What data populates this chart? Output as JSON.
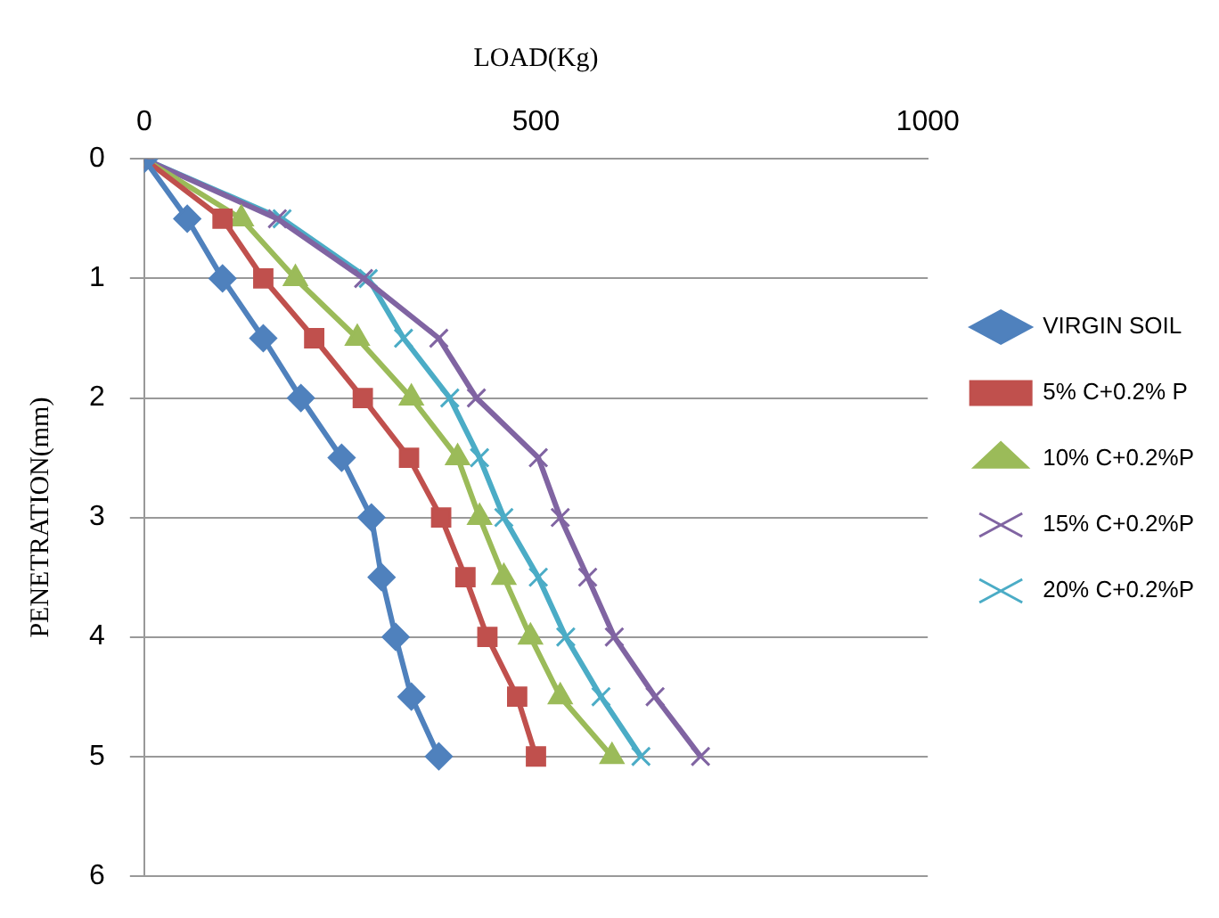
{
  "chart_data": {
    "type": "line",
    "xlabel": "LOAD(Kg)",
    "ylabel": "PENETRATION(mm)",
    "xlim": [
      0,
      1000
    ],
    "xticks": [
      0,
      500,
      1000
    ],
    "ylim": [
      6,
      0
    ],
    "yticks": [
      0,
      1,
      2,
      3,
      4,
      5,
      6
    ],
    "grid": "y",
    "legend": "right",
    "line_style": "solid",
    "series": [
      {
        "name": "VIRGIN SOIL",
        "color": "#4f81bd",
        "marker": "diamond",
        "x": [
          0,
          55,
          100,
          152,
          200,
          252,
          290,
          303,
          321,
          341,
          376
        ],
        "values": [
          0,
          0.5,
          1,
          1.5,
          2,
          2.5,
          3,
          3.5,
          4,
          4.5,
          5
        ]
      },
      {
        "name": "5% C+0.2% P",
        "color": "#c0504d",
        "marker": "square",
        "x": [
          0,
          100,
          152,
          217,
          279,
          338,
          379,
          410,
          438,
          476,
          500
        ],
        "values": [
          0,
          0.5,
          1,
          1.5,
          2,
          2.5,
          3,
          3.5,
          4,
          4.5,
          5
        ]
      },
      {
        "name": "10% C+0.2%P",
        "color": "#9bbb59",
        "marker": "triangle",
        "x": [
          0,
          124,
          193,
          272,
          341,
          400,
          428,
          459,
          493,
          531,
          597
        ],
        "values": [
          0,
          0.5,
          1,
          1.5,
          2,
          2.5,
          3,
          3.5,
          4,
          4.5,
          5
        ]
      },
      {
        "name": "15% C+0.2%P",
        "color": "#8064a2",
        "marker": "cross",
        "x": [
          0,
          170,
          280,
          376,
          424,
          503,
          531,
          566,
          600,
          652,
          710
        ],
        "values": [
          0,
          0.5,
          1,
          1.5,
          2,
          2.5,
          3,
          3.5,
          4,
          4.5,
          5
        ]
      },
      {
        "name": "20% C+0.2%P",
        "color": "#4bacc6",
        "marker": "cross",
        "x": [
          0,
          176,
          286,
          331,
          390,
          428,
          459,
          503,
          538,
          583,
          634
        ],
        "values": [
          0,
          0.5,
          1,
          1.5,
          2,
          2.5,
          3,
          3.5,
          4,
          4.5,
          5
        ]
      }
    ]
  }
}
